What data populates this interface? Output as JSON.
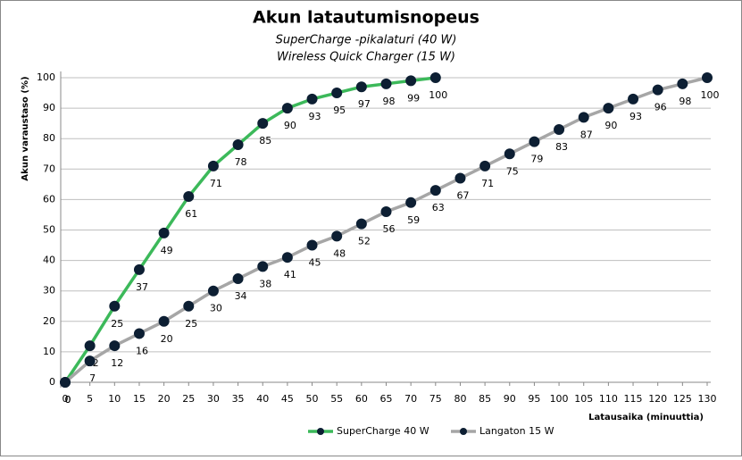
{
  "chart_data": {
    "type": "line",
    "title": "Akun latautumisnopeus",
    "subtitles": [
      "SuperCharge  -pikalaturi (40 W)",
      "Wireless Quick Charger  (15 W)"
    ],
    "x_label": "Latausaika  (minuuttia)",
    "y_label": "Akun varaustaso (%)",
    "xlim": [
      0,
      130
    ],
    "ylim": [
      0,
      100
    ],
    "xticks": [
      0,
      5,
      10,
      15,
      20,
      25,
      30,
      35,
      40,
      45,
      50,
      55,
      60,
      65,
      70,
      75,
      80,
      85,
      90,
      95,
      100,
      105,
      110,
      115,
      120,
      125,
      130
    ],
    "yticks": [
      0,
      10,
      20,
      30,
      40,
      50,
      60,
      70,
      80,
      90,
      100
    ],
    "grid": true,
    "legend": "bottom",
    "series": [
      {
        "name": "SuperCharge 40 W",
        "color": "#3cb95a",
        "x": [
          0,
          5,
          10,
          15,
          20,
          25,
          30,
          35,
          40,
          45,
          50,
          55,
          60,
          65,
          70,
          75
        ],
        "values": [
          0,
          12,
          25,
          37,
          49,
          61,
          71,
          78,
          85,
          90,
          93,
          95,
          97,
          98,
          99,
          100
        ]
      },
      {
        "name": "Langaton 15 W",
        "color": "#a6a6a6",
        "x": [
          0,
          5,
          10,
          15,
          20,
          25,
          30,
          35,
          40,
          45,
          50,
          55,
          60,
          65,
          70,
          75,
          80,
          85,
          90,
          95,
          100,
          105,
          110,
          115,
          120,
          125,
          130
        ],
        "values": [
          0,
          7,
          12,
          16,
          20,
          25,
          30,
          34,
          38,
          41,
          45,
          48,
          52,
          56,
          59,
          63,
          67,
          71,
          75,
          79,
          83,
          87,
          90,
          93,
          96,
          98,
          100
        ]
      }
    ]
  }
}
